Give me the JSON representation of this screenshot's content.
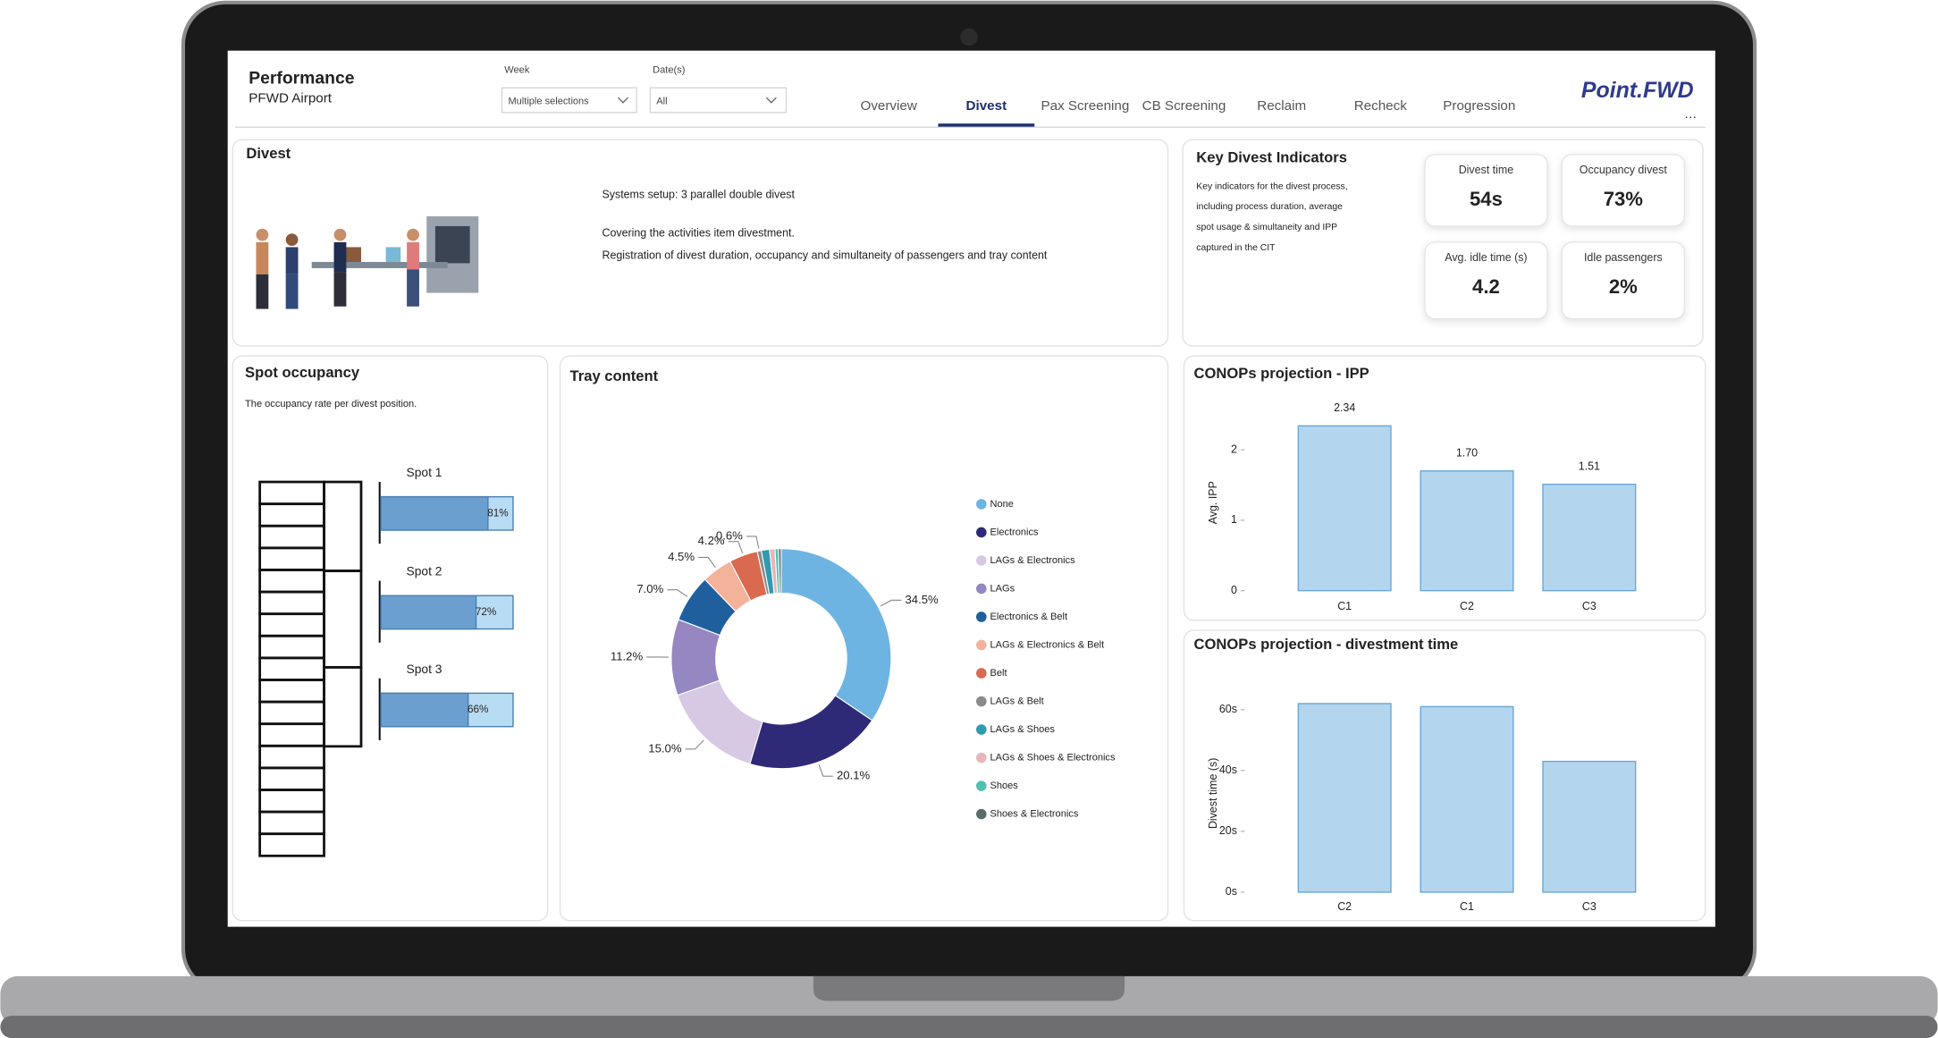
{
  "header": {
    "title": "Performance",
    "subtitle": "PFWD Airport",
    "filters": [
      {
        "label": "Week",
        "value": "Multiple selections"
      },
      {
        "label": "Date(s)",
        "value": "All"
      }
    ],
    "tabs": [
      "Overview",
      "Divest",
      "Pax Screening",
      "CB Screening",
      "Reclaim",
      "Recheck",
      "Progression"
    ],
    "active_tab": "Divest",
    "brand": "Point.FWD"
  },
  "divest_panel": {
    "title": "Divest",
    "lines": [
      "Systems setup:  3 parallel double divest",
      "Covering the activities item divestment.",
      "Registration of divest duration, occupancy and simultaneity of passengers and tray content"
    ]
  },
  "kpi_panel": {
    "title": "Key Divest Indicators",
    "description": [
      "Key indicators for the divest process,",
      "including process duration, average",
      "spot usage & simultaneity and IPP",
      "captured in the CIT"
    ],
    "cards": [
      {
        "label": "Divest time",
        "value": "54s"
      },
      {
        "label": "Occupancy divest",
        "value": "73%"
      },
      {
        "label": "Avg. idle time (s)",
        "value": "4.2"
      },
      {
        "label": "Idle passengers",
        "value": "2%"
      }
    ]
  },
  "spot_panel": {
    "title": "Spot occupancy",
    "subtitle": "The occupancy rate per divest position.",
    "chart_data": {
      "type": "hbar",
      "categories": [
        "Spot 1",
        "Spot 2",
        "Spot 3"
      ],
      "values": [
        81,
        72,
        66
      ],
      "value_labels": [
        "81%",
        "72%",
        "66%"
      ],
      "xlim": [
        0,
        100
      ],
      "color": "#6a9fcf",
      "track_color": "#b9dcf5"
    }
  },
  "tray_panel": {
    "title": "Tray content",
    "chart_data": {
      "type": "donut",
      "categories": [
        "None",
        "Electronics",
        "LAGs & Electronics",
        "LAGs",
        "Electronics & Belt",
        "LAGs & Electronics & Belt",
        "Belt",
        "LAGs & Belt",
        "LAGs & Shoes",
        "LAGs & Shoes & Electronics",
        "Shoes",
        "Shoes & Electronics"
      ],
      "values": [
        34.5,
        20.1,
        15.0,
        11.2,
        7.0,
        4.5,
        4.2,
        0.6,
        1.2,
        0.8,
        0.5,
        0.4
      ],
      "value_labels": [
        "34.5%",
        "20.1%",
        "15.0%",
        "11.2%",
        "7.0%",
        "4.5%",
        "4.2%",
        "0.6%",
        null,
        null,
        null,
        null
      ],
      "colors": [
        "#6db4e3",
        "#2e2a78",
        "#d7c8e4",
        "#9686c2",
        "#1f5f9e",
        "#f4b29b",
        "#d9694f",
        "#8a8a8a",
        "#2f9bb0",
        "#e8b6ba",
        "#4fc1b3",
        "#5a6b6b"
      ]
    }
  },
  "ipp_panel": {
    "chart_data": {
      "type": "bar",
      "title": "CONOPs projection - IPP",
      "y_label": "Avg. IPP",
      "categories": [
        "C1",
        "C2",
        "C3"
      ],
      "values": [
        2.34,
        1.7,
        1.51
      ],
      "value_labels": [
        "2.34",
        "1.70",
        "1.51"
      ],
      "ylim": [
        0,
        2.5
      ],
      "yticks": [
        0,
        1,
        2
      ],
      "color": "#b3d5ee"
    }
  },
  "time_panel": {
    "chart_data": {
      "type": "bar",
      "title": "CONOPs projection - divestment time",
      "y_label": "Divest time (s)",
      "categories": [
        "C2",
        "C1",
        "C3"
      ],
      "values": [
        62,
        61,
        43
      ],
      "ylim": [
        0,
        65
      ],
      "yticks": [
        {
          "value": 0,
          "label": "0s"
        },
        {
          "value": 20,
          "label": "20s"
        },
        {
          "value": 40,
          "label": "40s"
        },
        {
          "value": 60,
          "label": "60s"
        }
      ],
      "color": "#b3d5ee"
    }
  }
}
